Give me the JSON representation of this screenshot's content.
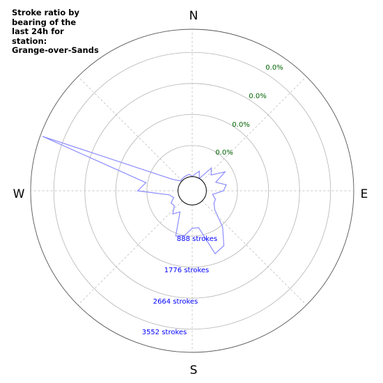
{
  "title": "Stroke ratio by\nbearing of the\nlast 24h for\nstation:\nGrange-over-Sands",
  "colors": {
    "series_line": "#8c8cff",
    "ratio_labels": "#006400",
    "count_labels": "#0000ff",
    "grid": "#b4b4b4",
    "frame": "#555555"
  },
  "chart_data": {
    "type": "polar-line",
    "title": "Stroke ratio by bearing of the last 24h for station: Grange-over-Sands",
    "directions": [
      "N",
      "E",
      "S",
      "W"
    ],
    "grid": true,
    "ratio_labels": [
      "0.0%",
      "0.0%",
      "0.0%",
      "0.0%"
    ],
    "count_labels": [
      "888 strokes",
      "1776 strokes",
      "2664 strokes",
      "3552 strokes"
    ],
    "radial_max": 4440,
    "inner_hole_strokes": 390,
    "bearings_deg": [
      0,
      10,
      20,
      30,
      40,
      50,
      60,
      70,
      80,
      90,
      100,
      110,
      120,
      130,
      140,
      150,
      160,
      170,
      180,
      190,
      200,
      210,
      220,
      230,
      240,
      250,
      260,
      270,
      280,
      290,
      300,
      310,
      320,
      330,
      340,
      350
    ],
    "strokes": [
      0,
      80,
      180,
      0,
      430,
      290,
      650,
      300,
      560,
      470,
      180,
      290,
      300,
      420,
      910,
      1350,
      1450,
      640,
      640,
      860,
      930,
      280,
      440,
      250,
      280,
      150,
      250,
      1110,
      900,
      3980,
      250,
      30,
      40,
      50,
      60,
      70
    ]
  }
}
